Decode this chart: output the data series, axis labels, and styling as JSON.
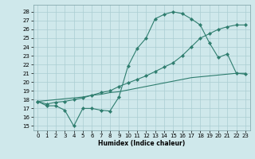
{
  "line1_x": [
    0,
    1,
    2,
    3,
    4,
    5,
    6,
    7,
    8,
    9,
    10,
    11,
    12,
    13,
    14,
    15,
    16,
    17,
    18,
    19,
    20,
    21,
    22,
    23
  ],
  "line1_y": [
    17.8,
    17.3,
    17.3,
    16.8,
    15.0,
    17.0,
    17.0,
    16.8,
    16.7,
    18.3,
    21.8,
    23.8,
    25.0,
    27.2,
    27.7,
    28.0,
    27.8,
    27.2,
    26.5,
    24.5,
    22.8,
    23.2,
    21.0,
    20.9
  ],
  "line2_x": [
    0,
    1,
    2,
    3,
    4,
    5,
    6,
    7,
    8,
    9,
    10,
    11,
    12,
    13,
    14,
    15,
    16,
    17,
    18,
    19,
    20,
    21,
    22,
    23
  ],
  "line2_y": [
    17.8,
    17.5,
    17.7,
    17.8,
    18.0,
    18.2,
    18.5,
    18.8,
    19.0,
    19.5,
    19.9,
    20.3,
    20.7,
    21.2,
    21.7,
    22.2,
    23.0,
    24.0,
    25.0,
    25.5,
    26.0,
    26.3,
    26.5,
    26.5
  ],
  "line3_x": [
    0,
    1,
    2,
    3,
    4,
    5,
    6,
    7,
    8,
    9,
    10,
    11,
    12,
    13,
    14,
    15,
    16,
    17,
    18,
    19,
    20,
    21,
    22,
    23
  ],
  "line3_y": [
    17.8,
    17.9,
    18.0,
    18.1,
    18.2,
    18.3,
    18.5,
    18.6,
    18.8,
    18.9,
    19.1,
    19.3,
    19.5,
    19.7,
    19.9,
    20.1,
    20.3,
    20.5,
    20.6,
    20.7,
    20.8,
    20.9,
    21.0,
    21.0
  ],
  "color": "#2e7d6e",
  "bg_color": "#cfe8eb",
  "grid_color": "#aacdd2",
  "xlabel": "Humidex (Indice chaleur)",
  "xlim": [
    -0.5,
    23.5
  ],
  "ylim": [
    14.5,
    28.8
  ],
  "yticks": [
    15,
    16,
    17,
    18,
    19,
    20,
    21,
    22,
    23,
    24,
    25,
    26,
    27,
    28
  ],
  "xticks": [
    0,
    1,
    2,
    3,
    4,
    5,
    6,
    7,
    8,
    9,
    10,
    11,
    12,
    13,
    14,
    15,
    16,
    17,
    18,
    19,
    20,
    21,
    22,
    23
  ],
  "marker": "D",
  "markersize": 2.2,
  "linewidth": 0.8,
  "tick_fontsize": 5.0,
  "xlabel_fontsize": 5.5
}
